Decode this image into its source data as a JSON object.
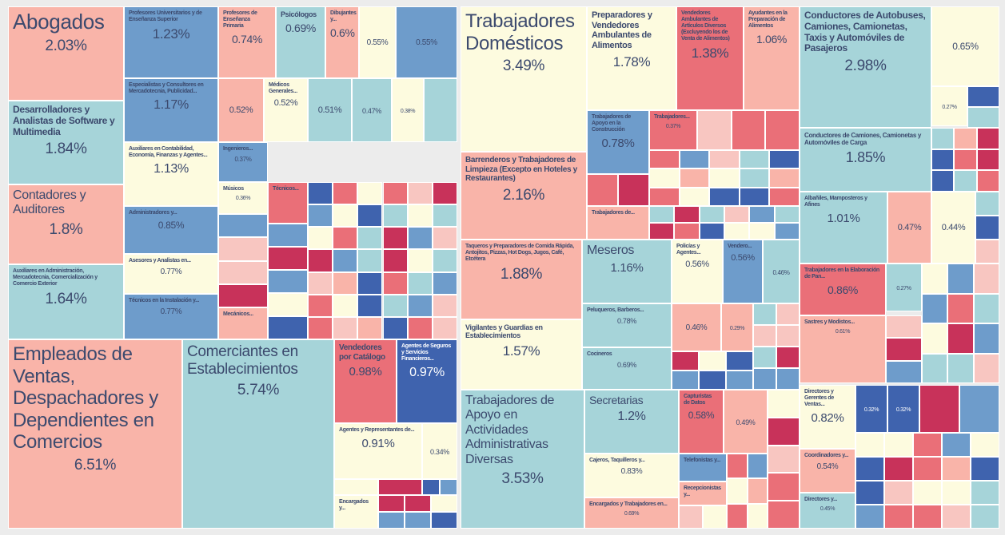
{
  "chart_data": {
    "type": "treemap",
    "items": [
      {
        "name": "Abogados",
        "value": 2.03,
        "value_label": "2.03%",
        "color": "#f9b4a9"
      },
      {
        "name": "Desarrolladores y Analistas de Software y Multimedia",
        "value": 1.84,
        "value_label": "1.84%",
        "color": "#a6d4d9"
      },
      {
        "name": "Contadores y Auditores",
        "value": 1.8,
        "value_label": "1.8%",
        "color": "#f9b4a9"
      },
      {
        "name": "Auxiliares en Administración, Mercadotecnia, Comercialización y Comercio Exterior",
        "value": 1.64,
        "value_label": "1.64%",
        "color": "#a6d4d9"
      },
      {
        "name": "Profesores Universitarios y de Enseñanza Superior",
        "value": 1.23,
        "value_label": "1.23%",
        "color": "#6e9ccb"
      },
      {
        "name": "Especialistas y Consultores en Mercadotecnia, Publicidad...",
        "value": 1.17,
        "value_label": "1.17%",
        "color": "#6e9ccb"
      },
      {
        "name": "Auxiliares en Contabilidad, Economía, Finanzas y Agentes...",
        "value": 1.13,
        "value_label": "1.13%",
        "color": "#fdfbdf"
      },
      {
        "name": "Administradores y...",
        "value": 0.85,
        "value_label": "0.85%",
        "color": "#6e9ccb"
      },
      {
        "name": "Asesores y Analistas en...",
        "value": 0.77,
        "value_label": "0.77%",
        "color": "#fdfbdf"
      },
      {
        "name": "Técnicos en la Instalación y...",
        "value": 0.77,
        "value_label": "0.77%",
        "color": "#6e9ccb"
      },
      {
        "name": "Profesores de Enseñanza Primaria",
        "value": 0.74,
        "value_label": "0.74%",
        "color": "#f9b4a9"
      },
      {
        "name": "Psicólogos",
        "value": 0.69,
        "value_label": "0.69%",
        "color": "#a6d4d9"
      },
      {
        "name": "Dibujantes y...",
        "value": 0.6,
        "value_label": "0.6%",
        "color": "#f9b4a9"
      },
      {
        "value": 0.55,
        "value_label": "0.55%",
        "color": "#fdfbdf"
      },
      {
        "value": 0.55,
        "value_label": "0.55%",
        "color": "#6e9ccb"
      },
      {
        "value": 0.52,
        "value_label": "0.52%",
        "color": "#f9b4a9"
      },
      {
        "name": "Médicos Generales...",
        "value": 0.52,
        "value_label": "0.52%",
        "color": "#fdfbdf"
      },
      {
        "value": 0.51,
        "value_label": "0.51%",
        "color": "#a6d4d9"
      },
      {
        "value": 0.47,
        "value_label": "0.47%",
        "color": "#a6d4d9"
      },
      {
        "value": 0.38,
        "value_label": "0.38%",
        "color": "#fdfbdf"
      },
      {
        "name": "Ingenieros...",
        "value": 0.37,
        "value_label": "0.37%",
        "color": "#6e9ccb"
      },
      {
        "name": "Músicos",
        "value": 0.36,
        "value_label": "0.36%",
        "color": "#fdfbdf"
      },
      {
        "name": "Técnicos...",
        "color": "#ea6f78"
      },
      {
        "name": "Mecánicos...",
        "color": "#f9b4a9"
      },
      {
        "name": "Empleados de Ventas, Despachadores y Dependientes en Comercios",
        "value": 6.51,
        "value_label": "6.51%",
        "color": "#f9b4a9"
      },
      {
        "name": "Comerciantes en Establecimientos",
        "value": 5.74,
        "value_label": "5.74%",
        "color": "#a6d4d9"
      },
      {
        "name": "Vendedores por Catálogo",
        "value": 0.98,
        "value_label": "0.98%",
        "color": "#ea6f78"
      },
      {
        "name": "Agentes de Seguros y Servicios Financieros...",
        "value": 0.97,
        "value_label": "0.97%",
        "color": "#3f63ae"
      },
      {
        "name": "Agentes y Representantes de...",
        "value": 0.91,
        "value_label": "0.91%",
        "color": "#fdfbdf"
      },
      {
        "value": 0.34,
        "value_label": "0.34%",
        "color": "#fdfbdf"
      },
      {
        "name": "Encargados y...",
        "color": "#fdfbdf"
      },
      {
        "name": "Trabajadores Domésticos",
        "value": 3.49,
        "value_label": "3.49%",
        "color": "#fdfbdf"
      },
      {
        "name": "Preparadores y Vendedores Ambulantes de Alimentos",
        "value": 1.78,
        "value_label": "1.78%",
        "color": "#fdfbdf"
      },
      {
        "name": "Vendedores Ambulantes de Artículos Diversos (Excluyendo los de Venta de Alimentos)",
        "value": 1.38,
        "value_label": "1.38%",
        "color": "#ea6f78"
      },
      {
        "name": "Ayudantes en la Preparación de Alimentos",
        "value": 1.06,
        "value_label": "1.06%",
        "color": "#f9b4a9"
      },
      {
        "name": "Trabajadores de Apoyo en la Construcción",
        "value": 0.78,
        "value_label": "0.78%",
        "color": "#6e9ccb"
      },
      {
        "name": "Trabajadores...",
        "value": 0.37,
        "value_label": "0.37%",
        "color": "#ea6f78"
      },
      {
        "name": "Barrenderos y Trabajadores de Limpieza (Excepto en Hoteles y Restaurantes)",
        "value": 2.16,
        "value_label": "2.16%",
        "color": "#f9b4a9"
      },
      {
        "name": "Trabajadores de...",
        "color": "#f9b4a9"
      },
      {
        "name": "Taqueros y Preparadores de Comida Rápida, Antojitos, Pizzas, Hot Dogs, Jugos, Café, Etcétera",
        "value": 1.88,
        "value_label": "1.88%",
        "color": "#f9b4a9"
      },
      {
        "name": "Vigilantes y Guardias en Establecimientos",
        "value": 1.57,
        "value_label": "1.57%",
        "color": "#fdfbdf"
      },
      {
        "name": "Meseros",
        "value": 1.16,
        "value_label": "1.16%",
        "color": "#a6d4d9"
      },
      {
        "name": "Policías y Agentes...",
        "value": 0.56,
        "value_label": "0.56%",
        "color": "#fdfbdf"
      },
      {
        "name": "Vendero...",
        "value": 0.56,
        "value_label": "0.56%",
        "color": "#6e9ccb"
      },
      {
        "value": 0.46,
        "value_label": "0.46%",
        "color": "#a6d4d9"
      },
      {
        "name": "Peluqueros, Barberos...",
        "value": 0.78,
        "value_label": "0.78%",
        "color": "#a6d4d9"
      },
      {
        "name": "Cocineros",
        "value": 0.69,
        "value_label": "0.69%",
        "color": "#a6d4d9"
      },
      {
        "value": 0.46,
        "value_label": "0.46%",
        "color": "#f9b4a9"
      },
      {
        "value": 0.29,
        "value_label": "0.29%",
        "color": "#f9b4a9"
      },
      {
        "name": "Trabajadores de Apoyo en Actividades Administrativas Diversas",
        "value": 3.53,
        "value_label": "3.53%",
        "color": "#a6d4d9"
      },
      {
        "name": "Secretarias",
        "value": 1.2,
        "value_label": "1.2%",
        "color": "#a6d4d9"
      },
      {
        "name": "Cajeros, Taquilleros y...",
        "value": 0.83,
        "value_label": "0.83%",
        "color": "#fdfbdf"
      },
      {
        "name": "Encargados y Trabajadores en...",
        "value": 0.69,
        "value_label": "0.69%",
        "color": "#f9b4a9"
      },
      {
        "name": "Capturistas de Datos",
        "value": 0.58,
        "value_label": "0.58%",
        "color": "#ea6f78"
      },
      {
        "value": 0.49,
        "value_label": "0.49%",
        "color": "#f9b4a9"
      },
      {
        "name": "Telefonistas y...",
        "color": "#6e9ccb"
      },
      {
        "name": "Recepcionistas y...",
        "color": "#f9b4a9"
      },
      {
        "name": "Conductores de Autobuses, Camiones, Camionetas, Taxis y Automóviles de Pasajeros",
        "value": 2.98,
        "value_label": "2.98%",
        "color": "#a6d4d9"
      },
      {
        "value": 0.65,
        "value_label": "0.65%",
        "color": "#fdfbdf"
      },
      {
        "value": 0.27,
        "value_label": "0.27%",
        "color": "#fdfbdf"
      },
      {
        "name": "Conductores de Camiones, Camionetas y Automóviles de Carga",
        "value": 1.85,
        "value_label": "1.85%",
        "color": "#a6d4d9"
      },
      {
        "name": "Albañiles, Mamposteros y Afines",
        "value": 1.01,
        "value_label": "1.01%",
        "color": "#a6d4d9"
      },
      {
        "value": 0.47,
        "value_label": "0.47%",
        "color": "#f9b4a9"
      },
      {
        "value": 0.44,
        "value_label": "0.44%",
        "color": "#fdfbdf"
      },
      {
        "name": "Trabajadores en la Elaboración de Pan...",
        "value": 0.86,
        "value_label": "0.86%",
        "color": "#ea6f78"
      },
      {
        "value": 0.27,
        "value_label": "0.27%",
        "color": "#a6d4d9"
      },
      {
        "name": "Sastres y Modistos...",
        "value": 0.61,
        "value_label": "0.61%",
        "color": "#f9b4a9"
      },
      {
        "name": "Directores y Gerentes de Ventas...",
        "value": 0.82,
        "value_label": "0.82%",
        "color": "#fdfbdf"
      },
      {
        "value": 0.32,
        "value_label": "0.32%",
        "color": "#3f63ae"
      },
      {
        "value": 0.32,
        "value_label": "0.32%",
        "color": "#3f63ae"
      },
      {
        "name": "Coordinadores y...",
        "value": 0.54,
        "value_label": "0.54%",
        "color": "#f9b4a9"
      },
      {
        "name": "Directores y...",
        "value": 0.45,
        "value_label": "0.45%",
        "color": "#a6d4d9"
      }
    ]
  }
}
